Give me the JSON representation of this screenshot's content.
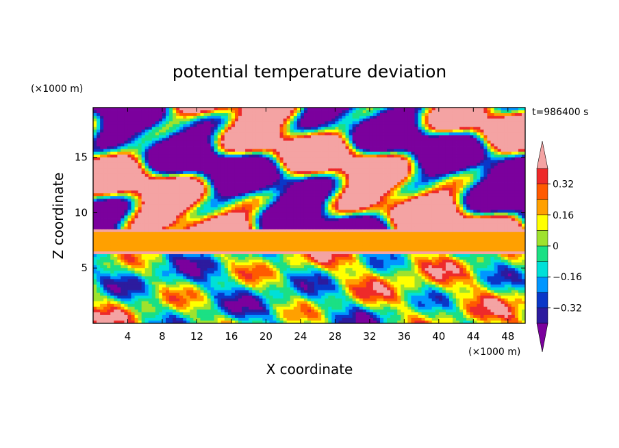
{
  "chart_data": {
    "type": "heatmap",
    "title": "potential temperature deviation",
    "xlabel": "X coordinate",
    "ylabel": "Z coordinate",
    "x_unit_label": "(×1000 m)",
    "y_unit_label": "(×1000 m)",
    "time_label": "t=986400 s",
    "xlim": [
      0,
      50
    ],
    "ylim": [
      0,
      19.5
    ],
    "x_ticks": [
      4,
      8,
      12,
      16,
      20,
      24,
      28,
      32,
      36,
      40,
      44,
      48
    ],
    "y_ticks": [
      5,
      10,
      15
    ],
    "colorbar": {
      "levels": [
        -0.4,
        -0.32,
        -0.24,
        -0.16,
        -0.08,
        0,
        0.08,
        0.16,
        0.24,
        0.32,
        0.4
      ],
      "tick_values": [
        0.32,
        0.16,
        0,
        -0.16,
        -0.32
      ],
      "tick_labels": [
        "0.32",
        "0.16",
        "0",
        "−0.16",
        "−0.32"
      ],
      "colors": [
        "#7b009d",
        "#2c1b9e",
        "#0a37c8",
        "#0096ff",
        "#00e0d8",
        "#1be084",
        "#9fe22d",
        "#ffff00",
        "#ffa000",
        "#ff5a00",
        "#ee2a2a",
        "#f4a3a3"
      ],
      "extend": "both"
    },
    "bands": [
      {
        "z_range": [
          0,
          6.2
        ],
        "description_value": "mixed -0.4 to 0.4"
      },
      {
        "z_range": [
          6.2,
          6.6
        ],
        "value": 0.4
      },
      {
        "z_range": [
          6.6,
          8.2
        ],
        "value": 0.2
      },
      {
        "z_range": [
          8.2,
          8.5
        ],
        "value": 0.4
      },
      {
        "z_range": [
          8.5,
          19.5
        ],
        "description_value": "alternating >0.4 and <-0.4"
      }
    ]
  }
}
